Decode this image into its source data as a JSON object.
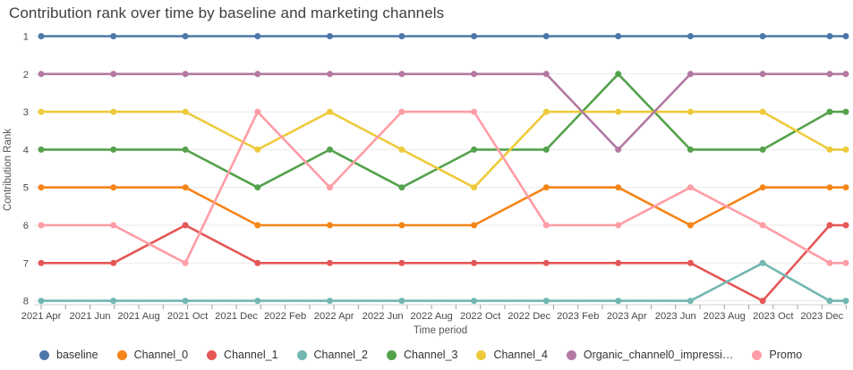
{
  "chart_data": {
    "type": "line",
    "title": "Contribution rank over time by baseline and marketing channels",
    "xlabel": "Time period",
    "ylabel": "Contribution Rank",
    "y_ticks": [
      1,
      2,
      3,
      4,
      5,
      6,
      7,
      8
    ],
    "ylim": [
      1,
      8
    ],
    "y_inverted": true,
    "grid": "horizontal-only",
    "legend_position": "bottom",
    "x_tick_labels": [
      "2021 Apr",
      "2021 Jun",
      "2021 Aug",
      "2021 Oct",
      "2021 Dec",
      "2022 Feb",
      "2022 Apr",
      "2022 Jun",
      "2022 Aug",
      "2022 Oct",
      "2022 Dec",
      "2023 Feb",
      "2023 Apr",
      "2023 Jun",
      "2023 Aug",
      "2023 Oct",
      "2023 Dec"
    ],
    "x_points_approx": [
      "2021-04",
      "2021-07",
      "2021-10",
      "2021-12",
      "2022-03",
      "2022-06",
      "2022-09",
      "2022-12",
      "2023-03",
      "2023-06",
      "2023-09",
      "2023-12",
      "2023-12-31"
    ],
    "x_points_month_offset": [
      0,
      2.96,
      5.91,
      8.87,
      11.83,
      14.78,
      17.74,
      20.7,
      23.65,
      26.61,
      29.57,
      32.32,
      32.98
    ],
    "series": [
      {
        "name": "baseline",
        "color": "#4c78a8",
        "ranks": [
          1,
          1,
          1,
          1,
          1,
          1,
          1,
          1,
          1,
          1,
          1,
          1,
          1
        ]
      },
      {
        "name": "Channel_0",
        "color": "#f58518",
        "ranks": [
          5,
          5,
          5,
          6,
          6,
          6,
          6,
          5,
          5,
          6,
          5,
          5,
          5
        ]
      },
      {
        "name": "Channel_1",
        "color": "#e45756",
        "ranks": [
          7,
          7,
          6,
          7,
          7,
          7,
          7,
          7,
          7,
          7,
          8,
          6,
          6
        ]
      },
      {
        "name": "Channel_2",
        "color": "#72b7b2",
        "ranks": [
          8,
          8,
          8,
          8,
          8,
          8,
          8,
          8,
          8,
          8,
          7,
          8,
          8
        ]
      },
      {
        "name": "Channel_3",
        "color": "#54a24b",
        "ranks": [
          4,
          4,
          4,
          5,
          4,
          5,
          4,
          4,
          2,
          4,
          4,
          3,
          3
        ]
      },
      {
        "name": "Channel_4",
        "color": "#eeca3b",
        "ranks": [
          3,
          3,
          3,
          4,
          3,
          4,
          5,
          3,
          3,
          3,
          3,
          4,
          4
        ]
      },
      {
        "name": "Organic_channel0_impressi…",
        "color": "#b279a2",
        "ranks": [
          2,
          2,
          2,
          2,
          2,
          2,
          2,
          2,
          4,
          2,
          2,
          2,
          2
        ]
      },
      {
        "name": "Promo",
        "color": "#ff9da6",
        "ranks": [
          6,
          6,
          7,
          3,
          5,
          3,
          3,
          6,
          6,
          5,
          6,
          7,
          7
        ]
      }
    ],
    "style": {
      "gridline_color": "#e8e8e8",
      "axisline_color": "#d4d4d4",
      "tick_color": "#9e9e9e",
      "background": "#ffffff"
    }
  }
}
